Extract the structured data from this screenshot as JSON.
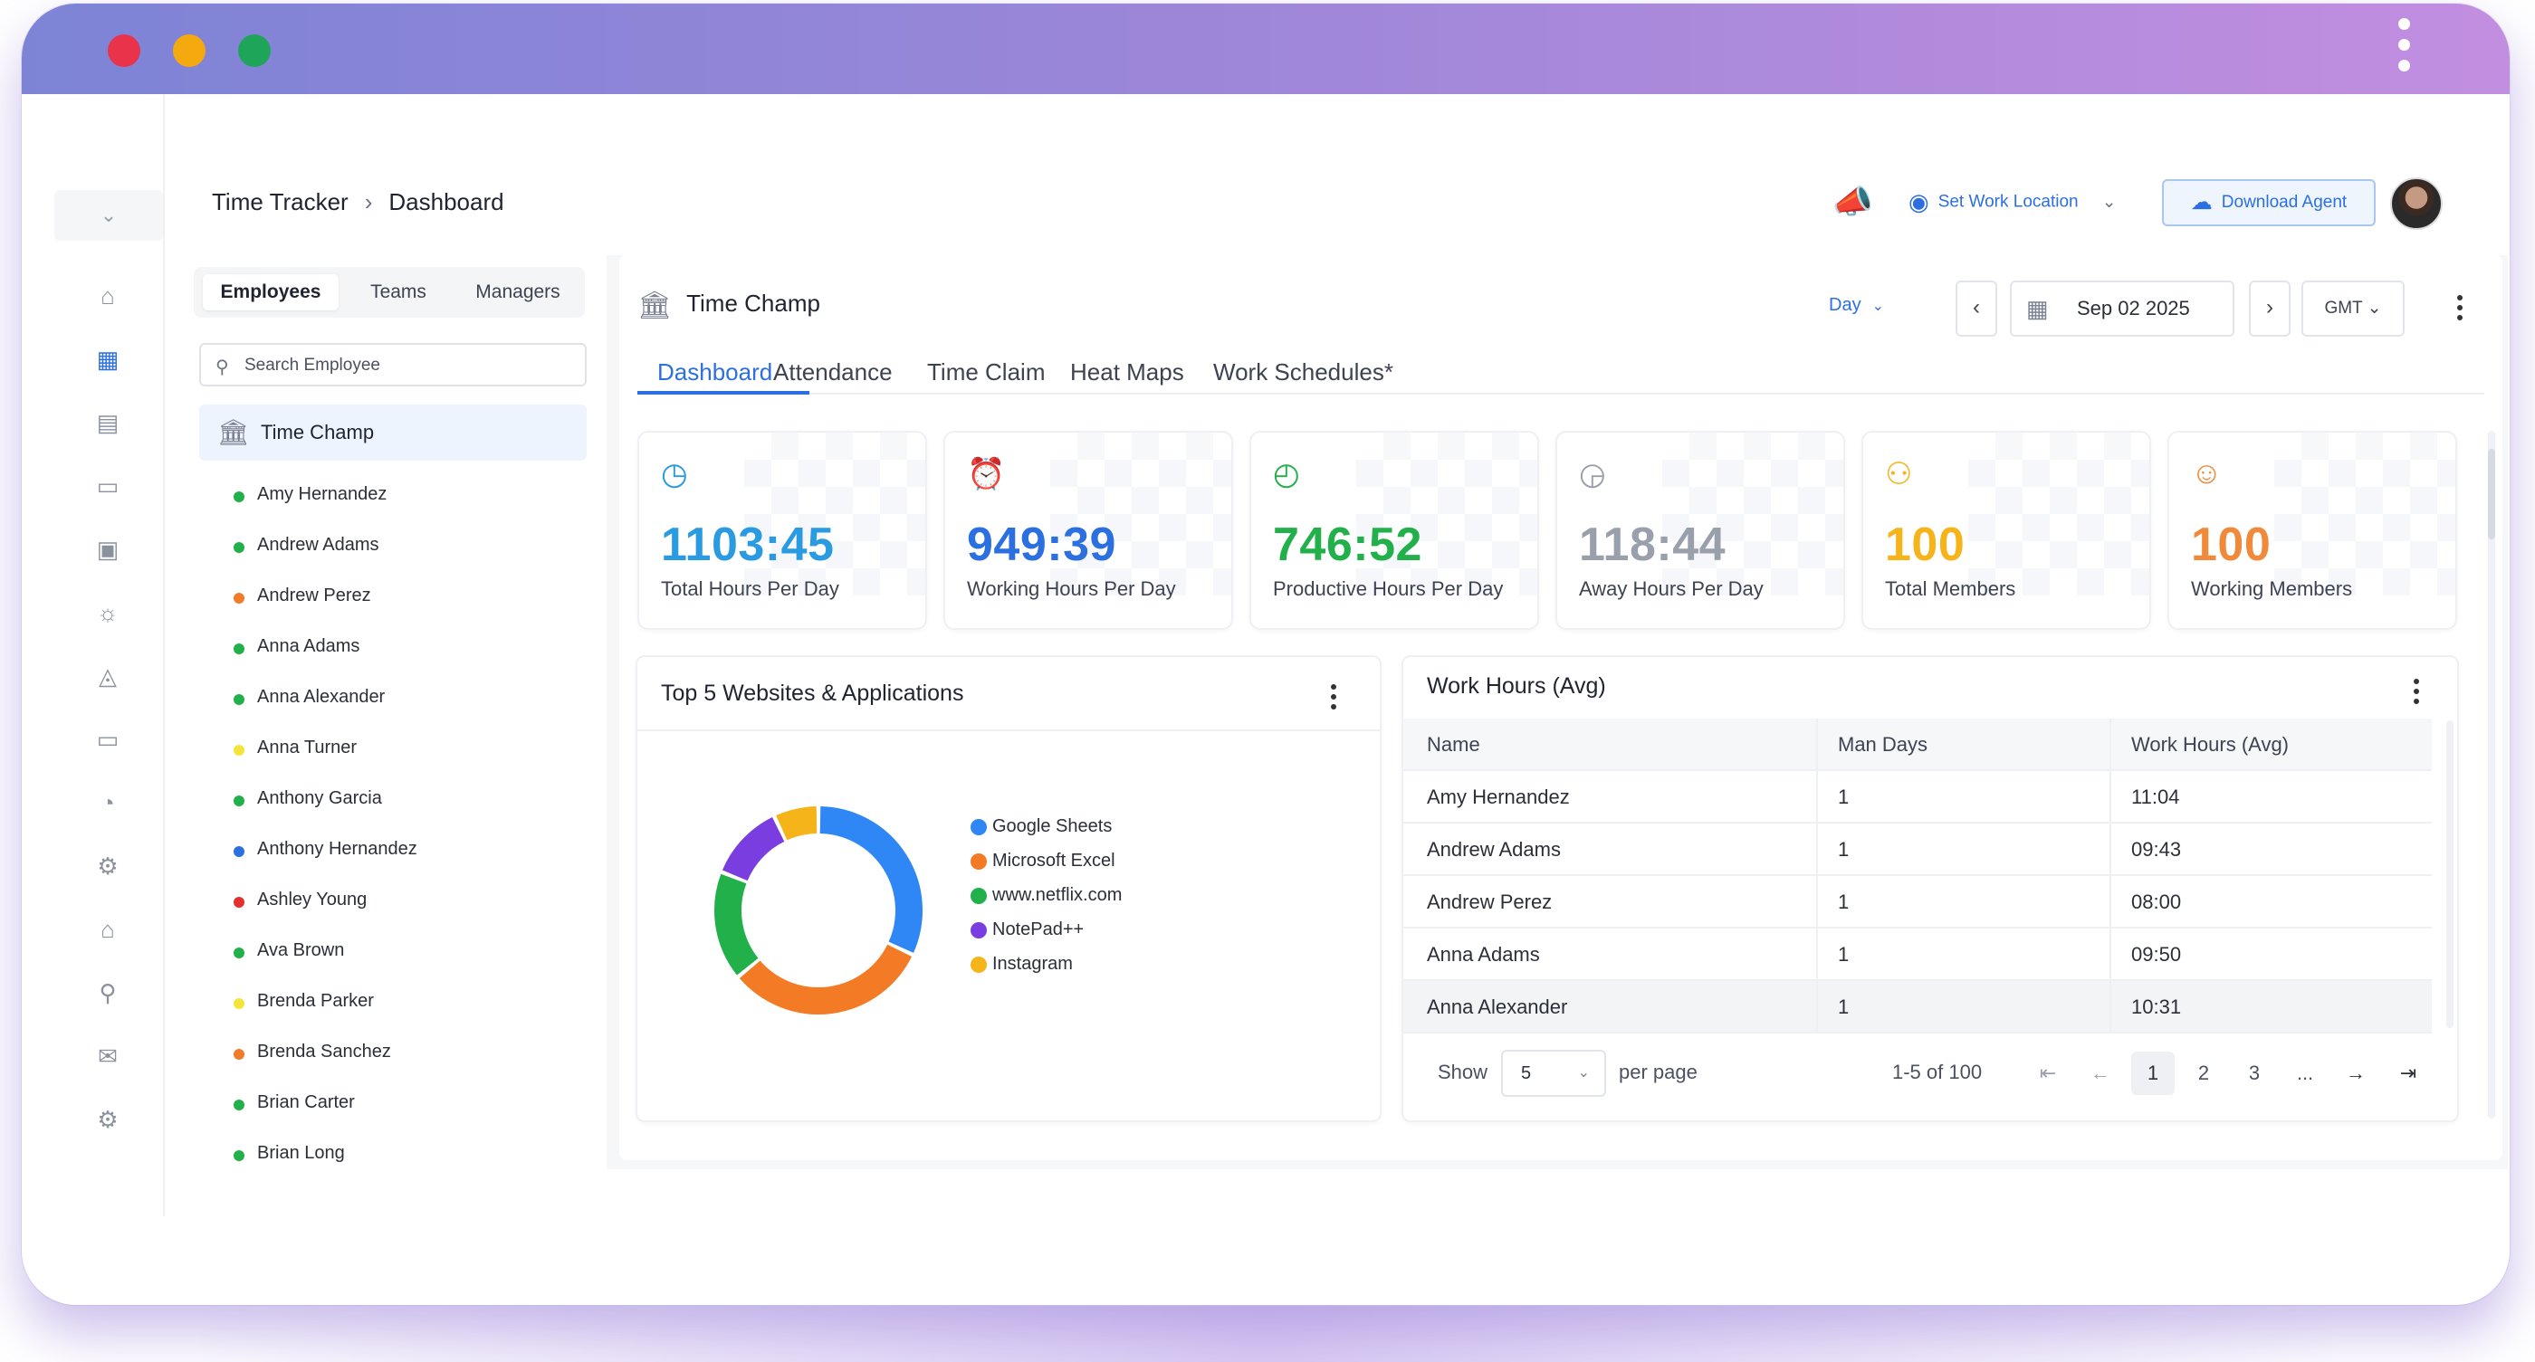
{
  "window": {
    "menu_icon": "more-vertical-icon"
  },
  "breadcrumb": {
    "root": "Time Tracker",
    "separator": "›",
    "current": "Dashboard"
  },
  "header": {
    "set_location": "Set Work Location",
    "download_agent": "Download Agent"
  },
  "sidebar": {
    "icons": [
      "home-icon",
      "dashboard-grid-icon",
      "reports-icon",
      "ticket-icon",
      "document-clock-icon",
      "lightbulb-icon",
      "bell-icon",
      "monitor-icon",
      "pie-chart-icon",
      "settings-cog-icon",
      "home-gear-icon",
      "search-user-icon",
      "mail-icon",
      "gear-icon"
    ]
  },
  "employee_panel": {
    "tabs": [
      "Employees",
      "Teams",
      "Managers"
    ],
    "search_placeholder": "Search Employee",
    "org_name": "Time Champ",
    "employees": [
      {
        "name": "Amy Hernandez",
        "status_color": "#22b04b"
      },
      {
        "name": "Andrew Adams",
        "status_color": "#22b04b"
      },
      {
        "name": "Andrew Perez",
        "status_color": "#f07c2a"
      },
      {
        "name": "Anna Adams",
        "status_color": "#22b04b"
      },
      {
        "name": "Anna Alexander",
        "status_color": "#22b04b"
      },
      {
        "name": "Anna Turner",
        "status_color": "#f3e43a"
      },
      {
        "name": "Anthony Garcia",
        "status_color": "#22b04b"
      },
      {
        "name": "Anthony Hernandez",
        "status_color": "#2c6fe0"
      },
      {
        "name": "Ashley Young",
        "status_color": "#e52e2e"
      },
      {
        "name": "Ava Brown",
        "status_color": "#22b04b"
      },
      {
        "name": "Brenda Parker",
        "status_color": "#f3e43a"
      },
      {
        "name": "Brenda Sanchez",
        "status_color": "#f07c2a"
      },
      {
        "name": "Brian Carter",
        "status_color": "#22b04b"
      },
      {
        "name": "Brian Long",
        "status_color": "#22b04b"
      }
    ]
  },
  "main": {
    "title": "Time Champ",
    "period": "Day",
    "date": "Sep 02 2025",
    "timezone": "GMT",
    "tabs": [
      "Dashboard",
      "Attendance",
      "Time Claim",
      "Heat Maps",
      "Work Schedules*"
    ],
    "stats": [
      {
        "value": "1103:45",
        "label": "Total Hours Per Day",
        "color": "#2a9be0",
        "icon": "clock-refresh-icon"
      },
      {
        "value": "949:39",
        "label": "Working Hours Per Day",
        "color": "#2c6fe0",
        "icon": "alarm-clock-icon"
      },
      {
        "value": "746:52",
        "label": "Productive Hours Per Day",
        "color": "#22b04b",
        "icon": "clock-run-icon"
      },
      {
        "value": "118:44",
        "label": "Away Hours Per Day",
        "color": "#9aa0ab",
        "icon": "clock-away-icon"
      },
      {
        "value": "100",
        "label": "Total Members",
        "color": "#f4b41a",
        "icon": "group-icon"
      },
      {
        "value": "100",
        "label": "Working Members",
        "color": "#f08a3a",
        "icon": "user-working-icon"
      }
    ],
    "top_apps": {
      "title": "Top 5 Websites & Applications",
      "legend": [
        {
          "name": "Google Sheets",
          "color": "#2f86f5"
        },
        {
          "name": "Microsoft Excel",
          "color": "#f47b25"
        },
        {
          "name": "www.netflix.com",
          "color": "#22b04b"
        },
        {
          "name": "NotePad++",
          "color": "#7a3ee0"
        },
        {
          "name": "Instagram",
          "color": "#f4b41a"
        }
      ]
    },
    "work_hours": {
      "title": "Work Hours (Avg)",
      "columns": [
        "Name",
        "Man Days",
        "Work Hours (Avg)"
      ],
      "rows": [
        [
          "Amy Hernandez",
          "1",
          "11:04"
        ],
        [
          "Andrew Adams",
          "1",
          "09:43"
        ],
        [
          "Andrew Perez",
          "1",
          "08:00"
        ],
        [
          "Anna Adams",
          "1",
          "09:50"
        ],
        [
          "Anna Alexander",
          "1",
          "10:31"
        ]
      ],
      "pager": {
        "show": "Show",
        "per_page_value": "5",
        "per_page": "per page",
        "range": "1-5 of 100",
        "pages": [
          "1",
          "2",
          "3",
          "..."
        ]
      }
    }
  },
  "chart_data": {
    "type": "pie",
    "title": "Top 5 Websites & Applications",
    "categories": [
      "Google Sheets",
      "Microsoft Excel",
      "www.netflix.com",
      "NotePad++",
      "Instagram"
    ],
    "values": [
      32,
      32,
      17,
      12,
      7
    ]
  }
}
